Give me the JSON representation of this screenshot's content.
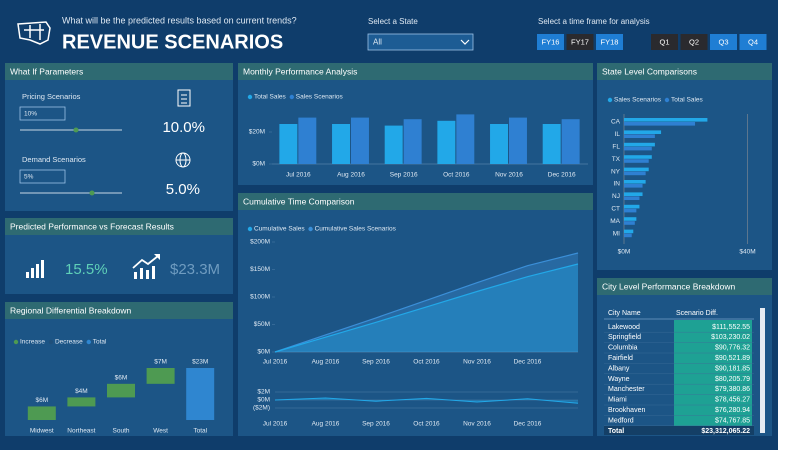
{
  "header": {
    "question": "What will be the predicted results based on current trends?",
    "title": "REVENUE SCENARIOS",
    "state_label": "Select a State",
    "state_value": "All",
    "timeframe_label": "Select a time frame for analysis",
    "years": [
      {
        "label": "FY16",
        "selected": true
      },
      {
        "label": "FY17",
        "selected": false
      },
      {
        "label": "FY18",
        "selected": true
      }
    ],
    "quarters": [
      {
        "label": "Q1",
        "selected": false
      },
      {
        "label": "Q2",
        "selected": false
      },
      {
        "label": "Q3",
        "selected": true
      },
      {
        "label": "Q4",
        "selected": true
      }
    ]
  },
  "what_if": {
    "title": "What If Parameters",
    "pricing": {
      "label": "Pricing Scenarios",
      "input": "10%",
      "value": "10.0%"
    },
    "demand": {
      "label": "Demand Scenarios",
      "input": "5%",
      "value": "5.0%"
    }
  },
  "predicted": {
    "title": "Predicted Performance vs Forecast Results",
    "growth": "15.5%",
    "amount": "$23.3M"
  },
  "chart_data": [
    {
      "type": "bar",
      "title": "Monthly Performance Analysis",
      "categories": [
        "Jul 2016",
        "Aug 2016",
        "Sep 2016",
        "Oct 2016",
        "Nov 2016",
        "Dec 2016"
      ],
      "series": [
        {
          "name": "Total Sales",
          "color": "#22a8e8",
          "values": [
            25000000,
            25000000,
            24000000,
            27000000,
            25000000,
            25000000
          ]
        },
        {
          "name": "Sales Scenarios",
          "color": "#2f80d2",
          "values": [
            29000000,
            29000000,
            28000000,
            31000000,
            29000000,
            28000000
          ]
        }
      ],
      "ylim": [
        0,
        35000000
      ],
      "yticks": [
        {
          "value": 0,
          "label": "$0M"
        },
        {
          "value": 20000000,
          "label": "$20M"
        }
      ]
    },
    {
      "type": "area",
      "title": "Cumulative Time Comparison",
      "categories": [
        "Jul 2016",
        "Aug 2016",
        "Sep 2016",
        "Oct 2016",
        "Nov 2016",
        "Dec 2016",
        null
      ],
      "series": [
        {
          "name": "Cumulative Sales",
          "color": "#22a8e8",
          "values": [
            0,
            27000000,
            54000000,
            82000000,
            110000000,
            137000000,
            160000000
          ]
        },
        {
          "name": "Cumulative Sales Scenarios",
          "color": "#3b8fd8",
          "values": [
            0,
            31000000,
            62000000,
            94000000,
            126000000,
            157000000,
            180000000
          ]
        }
      ],
      "ylim": [
        0,
        200000000
      ],
      "yticks": [
        {
          "value": 0,
          "label": "$0M"
        },
        {
          "value": 50000000,
          "label": "$50M"
        },
        {
          "value": 100000000,
          "label": "$100M"
        },
        {
          "value": 150000000,
          "label": "$150M"
        },
        {
          "value": 200000000,
          "label": "$200M"
        }
      ]
    },
    {
      "type": "line",
      "categories": [
        "Jul 2016",
        "Aug 2016",
        "Sep 2016",
        "Oct 2016",
        "Nov 2016",
        "Dec 2016",
        null
      ],
      "values": [
        0,
        500000,
        -300000,
        400000,
        -500000,
        300000,
        -800000
      ],
      "color": "#22a8e8",
      "ylim": [
        -3000000,
        3000000
      ],
      "yticks": [
        {
          "value": -2000000,
          "label": "($2M)"
        },
        {
          "value": 0,
          "label": "$0M"
        },
        {
          "value": 2000000,
          "label": "$2M"
        }
      ]
    },
    {
      "type": "waterfall",
      "title": "Regional Differential Breakdown",
      "legend": [
        {
          "name": "Increase",
          "color": "#4e9a52"
        },
        {
          "name": "Decrease",
          "color": "#1f4f7a"
        },
        {
          "name": "Total",
          "color": "#2f86d0"
        }
      ],
      "categories": [
        "Midwest",
        "Northeast",
        "South",
        "West",
        "Total"
      ],
      "values": [
        6,
        4,
        6,
        7,
        23
      ],
      "value_labels": [
        "$6M",
        "$4M",
        "$6M",
        "$7M",
        "$23M"
      ]
    },
    {
      "type": "hbar",
      "title": "State Level Comparisons",
      "categories": [
        "CA",
        "IL",
        "FL",
        "TX",
        "NY",
        "IN",
        "NJ",
        "CT",
        "MA",
        "MI"
      ],
      "series": [
        {
          "name": "Sales Scenarios",
          "color": "#22a8e8",
          "values": [
            27000000,
            12000000,
            10000000,
            9000000,
            8000000,
            7000000,
            6000000,
            5000000,
            4000000,
            3000000
          ]
        },
        {
          "name": "Total Sales",
          "color": "#2f80d2",
          "values": [
            23000000,
            10000000,
            9000000,
            8000000,
            7000000,
            6000000,
            5000000,
            4000000,
            3500000,
            2500000
          ]
        }
      ],
      "xlim": [
        0,
        45000000
      ],
      "xticks": [
        {
          "value": 0,
          "label": "$0M"
        },
        {
          "value": 40000000,
          "label": "$40M"
        }
      ]
    }
  ],
  "city_table": {
    "title": "City Level Performance Breakdown",
    "columns": [
      "City Name",
      "Scenario Diff."
    ],
    "rows": [
      [
        "Lakewood",
        "$111,552.55"
      ],
      [
        "Springfield",
        "$103,230.02"
      ],
      [
        "Columbia",
        "$90,776.32"
      ],
      [
        "Fairfield",
        "$90,521.89"
      ],
      [
        "Albany",
        "$90,181.85"
      ],
      [
        "Wayne",
        "$80,205.79"
      ],
      [
        "Manchester",
        "$79,380.86"
      ],
      [
        "Miami",
        "$78,456.27"
      ],
      [
        "Brookhaven",
        "$76,280.94"
      ],
      [
        "Medford",
        "$74,767.85"
      ]
    ],
    "total": [
      "Total",
      "$23,312,065.22"
    ]
  }
}
